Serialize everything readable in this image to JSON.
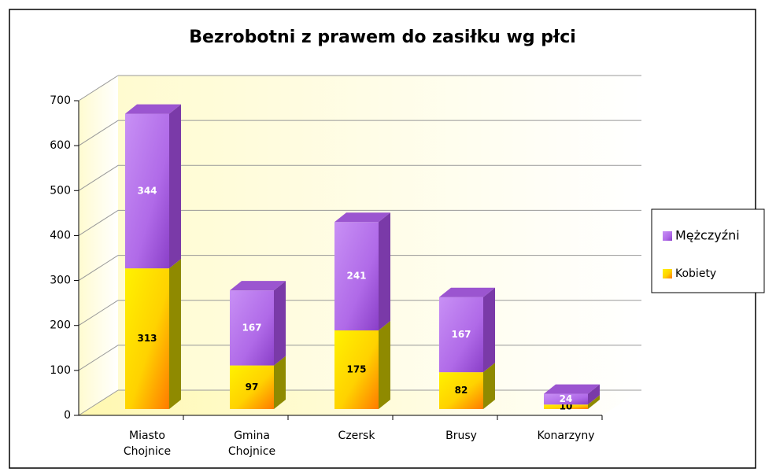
{
  "chart_data": {
    "type": "bar3d_stacked",
    "title": "Bezrobotni z prawem do zasiłku wg płci",
    "categories": [
      "Miasto Chojnice",
      "Gmina Chojnice",
      "Czersk",
      "Brusy",
      "Konarzyny"
    ],
    "series": [
      {
        "name": "Kobiety",
        "color": "#ffe600",
        "values": [
          313,
          97,
          175,
          82,
          10
        ]
      },
      {
        "name": "Mężczyźni",
        "color": "#b56ee6",
        "values": [
          344,
          167,
          241,
          167,
          24
        ]
      }
    ],
    "ylim": [
      0,
      700
    ],
    "yticks": [
      0,
      100,
      200,
      300,
      400,
      500,
      600,
      700
    ],
    "grid": true,
    "stacked": true,
    "legend": "right"
  }
}
